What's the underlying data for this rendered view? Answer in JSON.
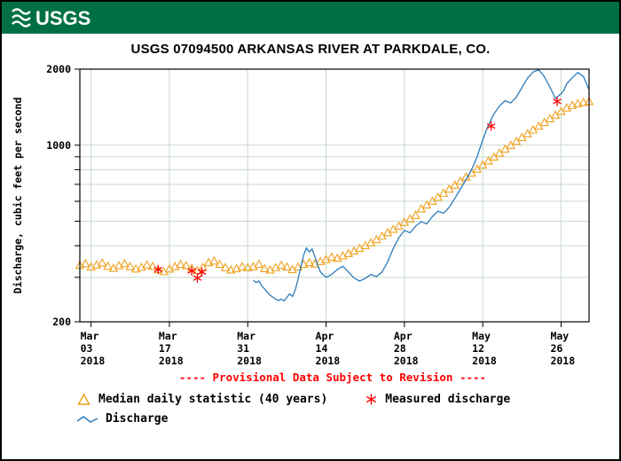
{
  "header": {
    "logo_text": "USGS"
  },
  "title": "USGS 07094500 ARKANSAS RIVER AT PARKDALE, CO.",
  "provisional_notice": "---- Provisional Data Subject to Revision ----",
  "legend": {
    "median_label": "Median daily statistic (40 years)",
    "measured_label": "Measured discharge",
    "discharge_label": "Discharge"
  },
  "colors": {
    "header_green": "#006F45",
    "grid": "#C8D8C8",
    "median": "#EFA11E",
    "measured": "#FF0000",
    "discharge": "#2B7BBA",
    "provisional": "#FF0000"
  },
  "chart_data": {
    "type": "line",
    "title": "USGS 07094500 ARKANSAS RIVER AT PARKDALE, CO.",
    "ylabel": "Discharge, cubic feet per second",
    "y_scale": "log",
    "ylim": [
      200,
      2000
    ],
    "grid": true,
    "x_domain_days": [
      0,
      91
    ],
    "x_ticks": [
      {
        "day": 2,
        "lines": [
          "Mar",
          "03",
          "2018"
        ]
      },
      {
        "day": 16,
        "lines": [
          "Mar",
          "17",
          "2018"
        ]
      },
      {
        "day": 30,
        "lines": [
          "Mar",
          "31",
          "2018"
        ]
      },
      {
        "day": 44,
        "lines": [
          "Apr",
          "14",
          "2018"
        ]
      },
      {
        "day": 58,
        "lines": [
          "Apr",
          "28",
          "2018"
        ]
      },
      {
        "day": 72,
        "lines": [
          "May",
          "12",
          "2018"
        ]
      },
      {
        "day": 86,
        "lines": [
          "May",
          "26",
          "2018"
        ]
      }
    ],
    "y_ticks": [
      {
        "value": 2000,
        "label": "2000"
      },
      {
        "value": 1000,
        "label": "1000"
      },
      {
        "value": 200,
        "label": "200"
      }
    ],
    "y_gridlines": [
      200,
      300,
      400,
      500,
      600,
      700,
      800,
      900,
      1000,
      2000
    ],
    "series": [
      {
        "name": "Median daily statistic (40 years)",
        "marker": "triangle",
        "color": "#EFA11E",
        "x_start": 0,
        "x_step": 1,
        "values": [
          335,
          340,
          330,
          336,
          342,
          332,
          326,
          334,
          340,
          331,
          324,
          329,
          336,
          332,
          322,
          316,
          324,
          331,
          338,
          334,
          326,
          319,
          329,
          343,
          348,
          338,
          328,
          321,
          325,
          331,
          328,
          331,
          338,
          325,
          321,
          328,
          335,
          330,
          322,
          330,
          338,
          343,
          339,
          347,
          353,
          361,
          357,
          365,
          373,
          381,
          391,
          401,
          411,
          423,
          437,
          451,
          465,
          479,
          495,
          511,
          528,
          560,
          580,
          601,
          623,
          646,
          670,
          695,
          721,
          748,
          776,
          805,
          835,
          866,
          898,
          931,
          965,
          1000,
          1036,
          1073,
          1111,
          1150,
          1190,
          1231,
          1273,
          1316,
          1360,
          1405,
          1438,
          1462,
          1478,
          1490
        ]
      },
      {
        "name": "Measured discharge",
        "marker": "asterisk",
        "color": "#FF0000",
        "x": [
          14,
          20,
          21,
          21.8,
          73.5,
          85.3
        ],
        "v": [
          322,
          318,
          298,
          315,
          1190,
          1490
        ]
      },
      {
        "name": "Discharge",
        "marker": "line",
        "color": "#2B7BBA",
        "x": [
          31,
          31.5,
          32,
          32.5,
          33,
          33.5,
          34,
          34.5,
          35,
          35.5,
          36,
          36.5,
          37,
          37.5,
          38,
          38.5,
          39,
          39.5,
          40,
          40.5,
          41,
          41.5,
          42,
          42.5,
          43,
          44,
          45,
          46,
          47,
          48,
          49,
          50,
          51,
          52,
          53,
          54,
          55,
          56,
          57,
          58,
          59,
          60,
          61,
          62,
          63,
          64,
          65,
          66,
          67,
          68,
          69,
          70,
          71,
          72,
          73,
          74,
          75,
          76,
          77,
          78,
          79,
          80,
          81,
          82,
          82.5,
          83,
          84,
          85,
          86,
          86.5,
          87,
          87.5,
          88,
          89,
          90,
          90.5,
          91
        ],
        "v": [
          292,
          286,
          290,
          278,
          270,
          262,
          255,
          250,
          246,
          243,
          246,
          242,
          250,
          258,
          252,
          268,
          295,
          330,
          368,
          392,
          378,
          388,
          362,
          335,
          315,
          300,
          308,
          322,
          332,
          315,
          298,
          290,
          297,
          308,
          302,
          315,
          345,
          390,
          430,
          460,
          450,
          478,
          498,
          488,
          522,
          548,
          538,
          568,
          615,
          670,
          730,
          800,
          900,
          1050,
          1200,
          1330,
          1430,
          1500,
          1470,
          1550,
          1690,
          1840,
          1950,
          1985,
          1930,
          1870,
          1700,
          1530,
          1600,
          1650,
          1750,
          1800,
          1850,
          1940,
          1870,
          1760,
          1660
        ]
      }
    ]
  }
}
